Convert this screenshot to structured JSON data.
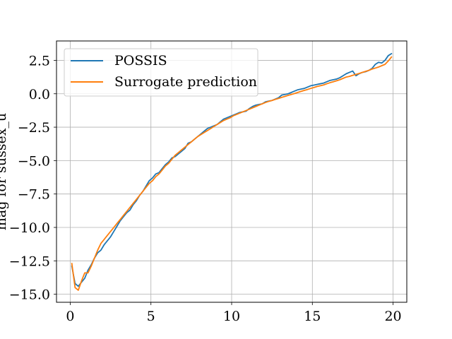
{
  "chart_data": {
    "type": "line",
    "title": "",
    "xlabel": "",
    "ylabel": "mag for sussex_u",
    "xlim": [
      -0.85,
      20.85
    ],
    "ylim": [
      -15.6,
      3.95
    ],
    "xticks": [
      0,
      5,
      10,
      15,
      20
    ],
    "xtick_labels": [
      "0",
      "5",
      "10",
      "15",
      "20"
    ],
    "yticks": [
      -15.0,
      -12.5,
      -10.0,
      -7.5,
      -5.0,
      -2.5,
      0.0,
      2.5
    ],
    "ytick_labels": [
      "−15.0",
      "−12.5",
      "−10.0",
      "−7.5",
      "−5.0",
      "−2.5",
      "0.0",
      "2.5"
    ],
    "grid": true,
    "legend_position": "top-left",
    "series": [
      {
        "name": "POSSIS",
        "color": "#1f77b4",
        "x": [
          0.1,
          0.3,
          0.5,
          0.7,
          0.9,
          1.1,
          1.3,
          1.5,
          1.7,
          1.9,
          2.1,
          2.3,
          2.5,
          2.7,
          2.9,
          3.1,
          3.3,
          3.5,
          3.7,
          3.9,
          4.1,
          4.3,
          4.5,
          4.7,
          4.9,
          5.1,
          5.3,
          5.5,
          5.7,
          5.9,
          6.1,
          6.3,
          6.5,
          6.7,
          6.9,
          7.1,
          7.3,
          7.5,
          7.7,
          7.9,
          8.1,
          8.3,
          8.5,
          8.7,
          8.9,
          9.1,
          9.3,
          9.5,
          9.7,
          9.9,
          10.1,
          10.3,
          10.5,
          10.7,
          10.9,
          11.1,
          11.3,
          11.5,
          11.7,
          11.9,
          12.1,
          12.3,
          12.5,
          12.7,
          12.9,
          13.1,
          13.3,
          13.5,
          13.7,
          13.9,
          14.1,
          14.3,
          14.5,
          14.7,
          14.9,
          15.1,
          15.3,
          15.5,
          15.7,
          15.9,
          16.1,
          16.3,
          16.5,
          16.7,
          16.9,
          17.1,
          17.3,
          17.5,
          17.7,
          17.9,
          18.1,
          18.3,
          18.5,
          18.7,
          18.9,
          19.1,
          19.3,
          19.5,
          19.7,
          19.9
        ],
        "y": [
          -12.9,
          -14.2,
          -14.4,
          -14.1,
          -13.8,
          -13.2,
          -12.8,
          -12.3,
          -11.9,
          -11.7,
          -11.3,
          -11.0,
          -10.7,
          -10.3,
          -9.9,
          -9.5,
          -9.2,
          -8.9,
          -8.7,
          -8.3,
          -8.0,
          -7.6,
          -7.3,
          -6.9,
          -6.5,
          -6.3,
          -6.0,
          -5.9,
          -5.6,
          -5.3,
          -5.1,
          -4.8,
          -4.7,
          -4.5,
          -4.3,
          -4.1,
          -3.7,
          -3.6,
          -3.4,
          -3.2,
          -3.0,
          -2.8,
          -2.6,
          -2.5,
          -2.4,
          -2.3,
          -2.1,
          -1.9,
          -1.8,
          -1.7,
          -1.6,
          -1.5,
          -1.4,
          -1.35,
          -1.3,
          -1.1,
          -0.95,
          -0.85,
          -0.8,
          -0.75,
          -0.6,
          -0.55,
          -0.5,
          -0.4,
          -0.3,
          -0.1,
          -0.05,
          0.0,
          0.1,
          0.2,
          0.3,
          0.35,
          0.4,
          0.5,
          0.6,
          0.65,
          0.7,
          0.75,
          0.8,
          0.9,
          1.0,
          1.05,
          1.1,
          1.2,
          1.35,
          1.5,
          1.6,
          1.7,
          1.35,
          1.5,
          1.6,
          1.65,
          1.75,
          1.9,
          2.2,
          2.35,
          2.3,
          2.5,
          2.85,
          3.0
        ]
      },
      {
        "name": "Surrogate prediction",
        "color": "#ff7f0e",
        "x": [
          0.1,
          0.3,
          0.5,
          0.7,
          0.9,
          1.1,
          1.3,
          1.5,
          1.7,
          1.9,
          2.1,
          2.3,
          2.5,
          2.7,
          2.9,
          3.1,
          3.3,
          3.5,
          3.7,
          3.9,
          4.1,
          4.3,
          4.5,
          4.7,
          4.9,
          5.1,
          5.3,
          5.5,
          5.7,
          5.9,
          6.1,
          6.3,
          6.5,
          6.7,
          6.9,
          7.1,
          7.3,
          7.5,
          7.7,
          7.9,
          8.1,
          8.3,
          8.5,
          8.7,
          8.9,
          9.1,
          9.3,
          9.5,
          9.7,
          9.9,
          10.1,
          10.3,
          10.5,
          10.7,
          10.9,
          11.1,
          11.3,
          11.5,
          11.7,
          11.9,
          12.1,
          12.3,
          12.5,
          12.7,
          12.9,
          13.1,
          13.3,
          13.5,
          13.7,
          13.9,
          14.1,
          14.3,
          14.5,
          14.7,
          14.9,
          15.1,
          15.3,
          15.5,
          15.7,
          15.9,
          16.1,
          16.3,
          16.5,
          16.7,
          16.9,
          17.1,
          17.3,
          17.5,
          17.7,
          17.9,
          18.1,
          18.3,
          18.5,
          18.7,
          18.9,
          19.1,
          19.3,
          19.5,
          19.7,
          19.9
        ],
        "y": [
          -12.7,
          -14.5,
          -14.7,
          -14.0,
          -13.4,
          -13.4,
          -12.9,
          -12.3,
          -11.7,
          -11.2,
          -10.9,
          -10.6,
          -10.3,
          -10.0,
          -9.7,
          -9.4,
          -9.1,
          -8.8,
          -8.5,
          -8.2,
          -7.9,
          -7.6,
          -7.3,
          -7.0,
          -6.7,
          -6.5,
          -6.2,
          -6.0,
          -5.7,
          -5.4,
          -5.2,
          -4.9,
          -4.6,
          -4.4,
          -4.2,
          -4.0,
          -3.8,
          -3.6,
          -3.4,
          -3.2,
          -3.05,
          -2.9,
          -2.75,
          -2.6,
          -2.45,
          -2.3,
          -2.15,
          -2.0,
          -1.9,
          -1.8,
          -1.65,
          -1.55,
          -1.45,
          -1.35,
          -1.25,
          -1.15,
          -1.05,
          -0.95,
          -0.85,
          -0.75,
          -0.65,
          -0.57,
          -0.5,
          -0.42,
          -0.35,
          -0.27,
          -0.2,
          -0.12,
          -0.05,
          0.02,
          0.1,
          0.18,
          0.25,
          0.32,
          0.4,
          0.47,
          0.55,
          0.6,
          0.66,
          0.75,
          0.83,
          0.9,
          0.97,
          1.05,
          1.15,
          1.25,
          1.3,
          1.38,
          1.45,
          1.52,
          1.6,
          1.68,
          1.75,
          1.85,
          1.92,
          2.0,
          2.1,
          2.2,
          2.45,
          2.75
        ]
      }
    ]
  }
}
